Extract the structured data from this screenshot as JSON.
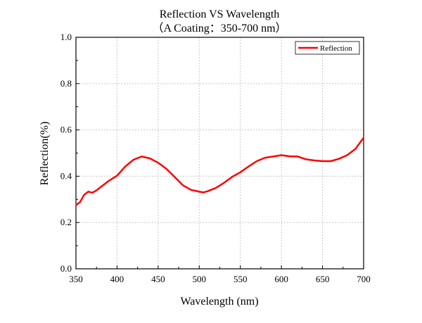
{
  "chart_data": {
    "type": "line",
    "title": "Reflection VS Wavelength",
    "subtitle": "（A Coating：350-700 nm）",
    "xlabel": "Wavelength (nm)",
    "ylabel": "Reflection(%)",
    "xlim": [
      350,
      700
    ],
    "ylim": [
      0.0,
      1.0
    ],
    "xticks": [
      350,
      400,
      450,
      500,
      550,
      600,
      650,
      700
    ],
    "yticks": [
      "0.0",
      "0.2",
      "0.4",
      "0.6",
      "0.8",
      "1.0"
    ],
    "grid": true,
    "legend_position": "top-right",
    "series": [
      {
        "name": "Reflection",
        "color": "#ff0000",
        "x": [
          350,
          355,
          360,
          365,
          370,
          375,
          380,
          390,
          400,
          410,
          420,
          430,
          440,
          450,
          460,
          470,
          480,
          490,
          500,
          505,
          510,
          520,
          530,
          540,
          550,
          560,
          570,
          580,
          590,
          600,
          610,
          620,
          630,
          640,
          650,
          660,
          670,
          680,
          690,
          700
        ],
        "y": [
          0.275,
          0.288,
          0.32,
          0.333,
          0.329,
          0.339,
          0.353,
          0.38,
          0.402,
          0.442,
          0.471,
          0.485,
          0.477,
          0.458,
          0.432,
          0.397,
          0.361,
          0.341,
          0.333,
          0.33,
          0.335,
          0.349,
          0.371,
          0.397,
          0.417,
          0.442,
          0.465,
          0.48,
          0.485,
          0.491,
          0.486,
          0.485,
          0.473,
          0.468,
          0.465,
          0.465,
          0.475,
          0.491,
          0.518,
          0.566
        ]
      }
    ]
  }
}
